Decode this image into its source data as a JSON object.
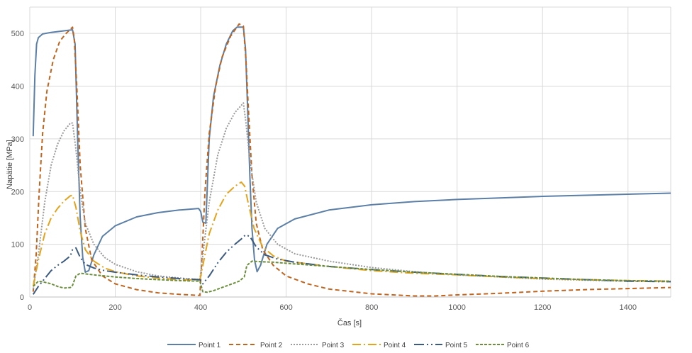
{
  "chart_data": {
    "type": "line",
    "title": "",
    "xlabel": "Čas [s]",
    "ylabel": "Napätie [MPa]",
    "xlim": [
      0,
      1500
    ],
    "ylim": [
      0,
      550
    ],
    "x_ticks": [
      "0",
      "200",
      "400",
      "600",
      "800",
      "1000",
      "1200",
      "1400"
    ],
    "y_ticks": [
      "0",
      "100",
      "200",
      "300",
      "400",
      "500"
    ],
    "grid": true,
    "legend_position": "bottom",
    "series": [
      {
        "name": "Point 1",
        "color": "#5b7fa6",
        "dash": "solid",
        "points": [
          [
            8,
            305
          ],
          [
            12,
            420
          ],
          [
            16,
            480
          ],
          [
            20,
            492
          ],
          [
            30,
            499
          ],
          [
            50,
            502
          ],
          [
            80,
            505
          ],
          [
            100,
            507
          ],
          [
            106,
            480
          ],
          [
            112,
            300
          ],
          [
            118,
            150
          ],
          [
            124,
            75
          ],
          [
            130,
            47
          ],
          [
            138,
            50
          ],
          [
            150,
            80
          ],
          [
            170,
            115
          ],
          [
            200,
            135
          ],
          [
            250,
            152
          ],
          [
            300,
            160
          ],
          [
            350,
            165
          ],
          [
            395,
            168
          ],
          [
            400,
            162
          ],
          [
            405,
            142
          ],
          [
            412,
            140
          ],
          [
            420,
            300
          ],
          [
            430,
            380
          ],
          [
            445,
            440
          ],
          [
            460,
            480
          ],
          [
            475,
            505
          ],
          [
            485,
            512
          ],
          [
            500,
            512
          ],
          [
            505,
            470
          ],
          [
            510,
            350
          ],
          [
            515,
            230
          ],
          [
            520,
            130
          ],
          [
            526,
            70
          ],
          [
            532,
            48
          ],
          [
            540,
            60
          ],
          [
            555,
            100
          ],
          [
            580,
            130
          ],
          [
            620,
            148
          ],
          [
            700,
            165
          ],
          [
            800,
            175
          ],
          [
            900,
            181
          ],
          [
            1000,
            185
          ],
          [
            1100,
            188
          ],
          [
            1200,
            191
          ],
          [
            1300,
            193
          ],
          [
            1400,
            195
          ],
          [
            1500,
            197
          ]
        ]
      },
      {
        "name": "Point 2",
        "color": "#c0651f",
        "dash": "6,4",
        "points": [
          [
            8,
            10
          ],
          [
            15,
            80
          ],
          [
            22,
            200
          ],
          [
            30,
            310
          ],
          [
            40,
            390
          ],
          [
            55,
            450
          ],
          [
            70,
            485
          ],
          [
            85,
            500
          ],
          [
            100,
            512
          ],
          [
            104,
            490
          ],
          [
            110,
            400
          ],
          [
            118,
            250
          ],
          [
            130,
            130
          ],
          [
            145,
            70
          ],
          [
            170,
            40
          ],
          [
            200,
            25
          ],
          [
            250,
            14
          ],
          [
            300,
            8
          ],
          [
            350,
            5
          ],
          [
            398,
            3
          ],
          [
            402,
            60
          ],
          [
            410,
            200
          ],
          [
            420,
            310
          ],
          [
            435,
            400
          ],
          [
            450,
            455
          ],
          [
            470,
            495
          ],
          [
            490,
            518
          ],
          [
            500,
            514
          ],
          [
            506,
            450
          ],
          [
            512,
            350
          ],
          [
            520,
            230
          ],
          [
            530,
            140
          ],
          [
            545,
            90
          ],
          [
            570,
            60
          ],
          [
            600,
            40
          ],
          [
            650,
            25
          ],
          [
            700,
            15
          ],
          [
            800,
            6
          ],
          [
            900,
            2
          ],
          [
            950,
            2
          ],
          [
            1000,
            4
          ],
          [
            1100,
            7
          ],
          [
            1200,
            11
          ],
          [
            1300,
            14
          ],
          [
            1400,
            16
          ],
          [
            1500,
            18
          ]
        ]
      },
      {
        "name": "Point 3",
        "color": "#9a9a9a",
        "dash": "2,2",
        "points": [
          [
            8,
            15
          ],
          [
            20,
            80
          ],
          [
            35,
            180
          ],
          [
            50,
            250
          ],
          [
            65,
            290
          ],
          [
            80,
            315
          ],
          [
            95,
            330
          ],
          [
            100,
            330
          ],
          [
            108,
            280
          ],
          [
            118,
            200
          ],
          [
            130,
            140
          ],
          [
            150,
            100
          ],
          [
            175,
            75
          ],
          [
            200,
            62
          ],
          [
            250,
            48
          ],
          [
            300,
            40
          ],
          [
            350,
            36
          ],
          [
            398,
            33
          ],
          [
            405,
            80
          ],
          [
            420,
            180
          ],
          [
            440,
            270
          ],
          [
            460,
            320
          ],
          [
            480,
            350
          ],
          [
            500,
            368
          ],
          [
            506,
            330
          ],
          [
            515,
            260
          ],
          [
            530,
            180
          ],
          [
            550,
            130
          ],
          [
            580,
            100
          ],
          [
            620,
            82
          ],
          [
            700,
            68
          ],
          [
            800,
            56
          ],
          [
            900,
            48
          ],
          [
            1000,
            42
          ],
          [
            1100,
            38
          ],
          [
            1200,
            34
          ],
          [
            1300,
            32
          ],
          [
            1400,
            30
          ],
          [
            1500,
            29
          ]
        ]
      },
      {
        "name": "Point 4",
        "color": "#e3a31c",
        "dash": "12,4,2,4",
        "points": [
          [
            8,
            20
          ],
          [
            20,
            70
          ],
          [
            35,
            120
          ],
          [
            50,
            150
          ],
          [
            65,
            168
          ],
          [
            80,
            182
          ],
          [
            95,
            192
          ],
          [
            100,
            193
          ],
          [
            108,
            170
          ],
          [
            118,
            125
          ],
          [
            130,
            90
          ],
          [
            150,
            68
          ],
          [
            175,
            55
          ],
          [
            200,
            48
          ],
          [
            250,
            40
          ],
          [
            300,
            36
          ],
          [
            350,
            33
          ],
          [
            398,
            32
          ],
          [
            405,
            60
          ],
          [
            420,
            120
          ],
          [
            440,
            165
          ],
          [
            460,
            195
          ],
          [
            480,
            210
          ],
          [
            495,
            218
          ],
          [
            503,
            210
          ],
          [
            512,
            175
          ],
          [
            525,
            130
          ],
          [
            545,
            95
          ],
          [
            570,
            78
          ],
          [
            600,
            68
          ],
          [
            700,
            58
          ],
          [
            800,
            50
          ],
          [
            900,
            45
          ],
          [
            1000,
            42
          ],
          [
            1100,
            38
          ],
          [
            1200,
            35
          ],
          [
            1300,
            33
          ],
          [
            1400,
            31
          ],
          [
            1500,
            30
          ]
        ]
      },
      {
        "name": "Point 5",
        "color": "#3c5a80",
        "dash": "14,4,2,4,2,4",
        "points": [
          [
            8,
            5
          ],
          [
            20,
            20
          ],
          [
            35,
            35
          ],
          [
            50,
            50
          ],
          [
            65,
            60
          ],
          [
            80,
            68
          ],
          [
            95,
            78
          ],
          [
            100,
            90
          ],
          [
            108,
            93
          ],
          [
            118,
            75
          ],
          [
            130,
            62
          ],
          [
            150,
            55
          ],
          [
            175,
            50
          ],
          [
            200,
            47
          ],
          [
            250,
            42
          ],
          [
            300,
            38
          ],
          [
            350,
            35
          ],
          [
            398,
            33
          ],
          [
            405,
            25
          ],
          [
            420,
            40
          ],
          [
            440,
            65
          ],
          [
            460,
            85
          ],
          [
            480,
            100
          ],
          [
            495,
            110
          ],
          [
            505,
            118
          ],
          [
            515,
            115
          ],
          [
            530,
            95
          ],
          [
            550,
            80
          ],
          [
            580,
            72
          ],
          [
            620,
            66
          ],
          [
            700,
            58
          ],
          [
            800,
            52
          ],
          [
            900,
            47
          ],
          [
            1000,
            43
          ],
          [
            1100,
            39
          ],
          [
            1200,
            36
          ],
          [
            1300,
            33
          ],
          [
            1400,
            30
          ],
          [
            1500,
            29
          ]
        ]
      },
      {
        "name": "Point 6",
        "color": "#6b8e3d",
        "dash": "4,2",
        "points": [
          [
            8,
            20
          ],
          [
            20,
            30
          ],
          [
            35,
            28
          ],
          [
            50,
            25
          ],
          [
            65,
            20
          ],
          [
            80,
            17
          ],
          [
            95,
            18
          ],
          [
            100,
            22
          ],
          [
            108,
            40
          ],
          [
            118,
            45
          ],
          [
            130,
            44
          ],
          [
            150,
            42
          ],
          [
            175,
            40
          ],
          [
            200,
            38
          ],
          [
            250,
            35
          ],
          [
            300,
            33
          ],
          [
            350,
            31
          ],
          [
            398,
            30
          ],
          [
            405,
            10
          ],
          [
            415,
            9
          ],
          [
            430,
            12
          ],
          [
            450,
            18
          ],
          [
            470,
            24
          ],
          [
            490,
            30
          ],
          [
            502,
            38
          ],
          [
            508,
            60
          ],
          [
            520,
            68
          ],
          [
            540,
            67
          ],
          [
            570,
            66
          ],
          [
            600,
            64
          ],
          [
            700,
            58
          ],
          [
            800,
            52
          ],
          [
            900,
            47
          ],
          [
            1000,
            43
          ],
          [
            1100,
            39
          ],
          [
            1200,
            36
          ],
          [
            1300,
            33
          ],
          [
            1400,
            31
          ],
          [
            1500,
            30
          ]
        ]
      }
    ]
  }
}
